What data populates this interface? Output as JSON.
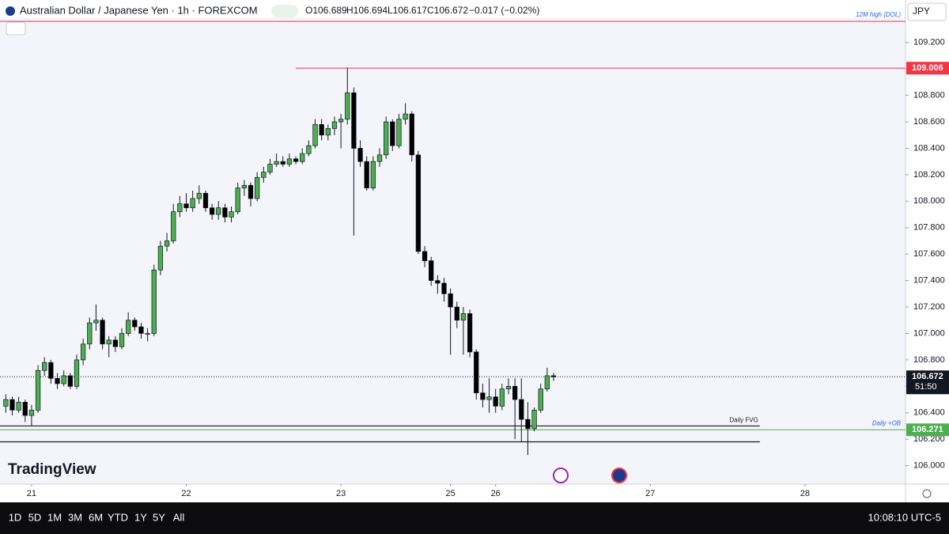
{
  "header": {
    "symbol": "Australian Dollar / Japanese Yen · 1h · FOREXCOM",
    "ohlc": [
      "O106.689",
      "H106.694",
      "L106.617",
      "C106.672",
      "−0.017 (−0.02%)"
    ],
    "currency": "JPY",
    "logo": "TradingView"
  },
  "toolbar": {
    "ranges": [
      "1D",
      "5D",
      "1M",
      "3M",
      "6M",
      "YTD",
      "1Y",
      "5Y",
      "All"
    ],
    "clock": "10:08:10 UTC-5"
  },
  "chart_data": {
    "type": "candlestick",
    "up_color": "#4caf50",
    "down_color": "#000000",
    "xlim": [
      -4.9,
      135.6
    ],
    "ylim": [
      105.86,
      109.39
    ],
    "xticks": [
      {
        "value": 0,
        "label": "21"
      },
      {
        "value": 24,
        "label": "22"
      },
      {
        "value": 48,
        "label": "23"
      },
      {
        "value": 65,
        "label": "25"
      },
      {
        "value": 72,
        "label": "26"
      },
      {
        "value": 96,
        "label": "27"
      },
      {
        "value": 120,
        "label": "28"
      }
    ],
    "yticks": [
      {
        "value": 106,
        "label": "106.000"
      },
      {
        "value": 106.2,
        "label": "106.200"
      },
      {
        "value": 106.4,
        "label": "106.400"
      },
      {
        "value": 106.6,
        "label": "106.600"
      },
      {
        "value": 106.8,
        "label": "106.800"
      },
      {
        "value": 107,
        "label": "107.000"
      },
      {
        "value": 107.2,
        "label": "107.200"
      },
      {
        "value": 107.4,
        "label": "107.400"
      },
      {
        "value": 107.6,
        "label": "107.600"
      },
      {
        "value": 107.8,
        "label": "107.800"
      },
      {
        "value": 108,
        "label": "108.000"
      },
      {
        "value": 108.2,
        "label": "108.200"
      },
      {
        "value": 108.4,
        "label": "108.400"
      },
      {
        "value": 108.6,
        "label": "108.600"
      },
      {
        "value": 108.8,
        "label": "108.800"
      },
      {
        "value": 109,
        "label": "109.000"
      },
      {
        "value": 109.2,
        "label": "109.200"
      }
    ],
    "x": [
      -4,
      -3,
      -2,
      -1,
      0,
      1,
      2,
      3,
      4,
      5,
      6,
      7,
      8,
      9,
      10,
      11,
      12,
      13,
      14,
      15,
      16,
      17,
      18,
      19,
      20,
      21,
      22,
      23,
      24,
      25,
      26,
      27,
      28,
      29,
      30,
      31,
      32,
      33,
      34,
      35,
      36,
      37,
      38,
      39,
      40,
      41,
      42,
      43,
      44,
      45,
      46,
      47,
      48,
      49,
      50,
      51,
      52,
      53,
      54,
      55,
      56,
      57,
      58,
      59,
      60,
      61,
      62,
      63,
      64,
      65,
      66,
      67,
      68,
      69,
      70,
      71,
      72,
      73,
      74,
      75,
      76,
      77,
      78,
      79,
      80,
      81
    ],
    "open": [
      106.45,
      106.5,
      106.42,
      106.48,
      106.38,
      106.42,
      106.72,
      106.78,
      106.66,
      106.62,
      106.68,
      106.6,
      106.8,
      106.92,
      107.08,
      107.1,
      106.92,
      106.95,
      106.9,
      107.0,
      107.1,
      107.05,
      107.0,
      107.0,
      107.48,
      107.66,
      107.7,
      107.92,
      107.98,
      107.95,
      108.02,
      108.06,
      107.95,
      107.9,
      107.95,
      107.88,
      107.92,
      108.1,
      108.12,
      108.02,
      108.18,
      108.22,
      108.28,
      108.3,
      108.28,
      108.32,
      108.3,
      108.36,
      108.42,
      108.58,
      108.5,
      108.55,
      108.6,
      108.62,
      108.82,
      108.4,
      108.3,
      108.1,
      108.3,
      108.35,
      108.6,
      108.42,
      108.62,
      108.66,
      108.35,
      107.62,
      107.55,
      107.4,
      107.38,
      107.3,
      107.2,
      107.1,
      107.15,
      106.86,
      106.55,
      106.5,
      106.52,
      106.45,
      106.58,
      106.6,
      106.5,
      106.35,
      106.28,
      106.42,
      106.58,
      106.68
    ],
    "high": [
      106.54,
      106.52,
      106.52,
      106.5,
      106.46,
      106.76,
      106.82,
      106.8,
      106.7,
      106.72,
      106.7,
      106.84,
      106.96,
      107.12,
      107.22,
      107.12,
      106.98,
      106.98,
      107.04,
      107.16,
      107.12,
      107.08,
      107.04,
      107.52,
      107.7,
      107.76,
      107.98,
      108.04,
      108.06,
      108.08,
      108.12,
      108.08,
      107.98,
      108.0,
      107.98,
      107.96,
      108.14,
      108.16,
      108.14,
      108.22,
      108.26,
      108.32,
      108.36,
      108.34,
      108.36,
      108.34,
      108.4,
      108.46,
      108.62,
      108.62,
      108.58,
      108.64,
      108.66,
      109.01,
      108.86,
      108.46,
      108.34,
      108.34,
      108.4,
      108.64,
      108.62,
      108.66,
      108.74,
      108.68,
      108.38,
      107.66,
      107.58,
      107.44,
      107.42,
      107.34,
      107.24,
      107.2,
      107.18,
      106.88,
      106.62,
      106.66,
      106.58,
      106.62,
      106.66,
      106.66,
      106.66,
      106.48,
      106.44,
      106.62,
      106.74,
      106.7
    ],
    "low": [
      106.4,
      106.38,
      106.4,
      106.33,
      106.3,
      106.4,
      106.68,
      106.62,
      106.58,
      106.6,
      106.58,
      106.58,
      106.76,
      106.88,
      107.02,
      106.88,
      106.82,
      106.86,
      106.88,
      106.98,
      107.02,
      106.96,
      106.94,
      106.98,
      107.44,
      107.62,
      107.68,
      107.88,
      107.92,
      107.92,
      107.98,
      107.92,
      107.86,
      107.86,
      107.84,
      107.84,
      107.9,
      108.04,
      107.96,
      108.0,
      108.14,
      108.2,
      108.26,
      108.26,
      108.26,
      108.28,
      108.28,
      108.34,
      108.4,
      108.46,
      108.46,
      108.5,
      108.4,
      108.58,
      107.74,
      108.26,
      108.08,
      108.08,
      108.26,
      108.32,
      108.38,
      108.4,
      108.58,
      108.3,
      107.6,
      107.5,
      107.36,
      107.3,
      107.24,
      106.84,
      107.04,
      106.84,
      106.82,
      106.5,
      106.44,
      106.4,
      106.4,
      106.42,
      106.54,
      106.2,
      106.18,
      106.08,
      106.26,
      106.4,
      106.56,
      106.64
    ],
    "close": [
      106.5,
      106.42,
      106.48,
      106.38,
      106.42,
      106.72,
      106.78,
      106.66,
      106.62,
      106.68,
      106.6,
      106.8,
      106.92,
      107.08,
      107.1,
      106.92,
      106.95,
      106.9,
      107.0,
      107.1,
      107.05,
      107.0,
      107.0,
      107.48,
      107.66,
      107.7,
      107.92,
      107.98,
      107.95,
      108.02,
      108.06,
      107.95,
      107.9,
      107.95,
      107.88,
      107.92,
      108.1,
      108.12,
      108.02,
      108.18,
      108.22,
      108.28,
      108.3,
      108.28,
      108.32,
      108.3,
      108.36,
      108.42,
      108.58,
      108.5,
      108.55,
      108.6,
      108.62,
      108.82,
      108.4,
      108.3,
      108.1,
      108.3,
      108.35,
      108.6,
      108.42,
      108.62,
      108.66,
      108.35,
      107.62,
      107.55,
      107.4,
      107.38,
      107.3,
      107.2,
      107.1,
      107.15,
      106.86,
      106.55,
      106.5,
      106.52,
      106.45,
      106.58,
      106.6,
      106.5,
      106.35,
      106.28,
      106.42,
      106.58,
      106.68,
      106.672
    ],
    "levels": [
      {
        "name": "12M high (DOL)",
        "value": 109.36,
        "color": "#f23645"
      },
      {
        "value": 109.006,
        "label": "109.006",
        "color": "#f23645",
        "x_from": 41
      },
      {
        "name": "Daily +OB",
        "value": 106.271,
        "label": "106.271",
        "color": "#4caf50"
      }
    ],
    "zone": {
      "name": "Daily FVG",
      "low": 106.18,
      "high": 106.3,
      "x_to": 113
    },
    "last_price": {
      "value": 106.672,
      "label": "106.672",
      "countdown": "51:50"
    }
  }
}
